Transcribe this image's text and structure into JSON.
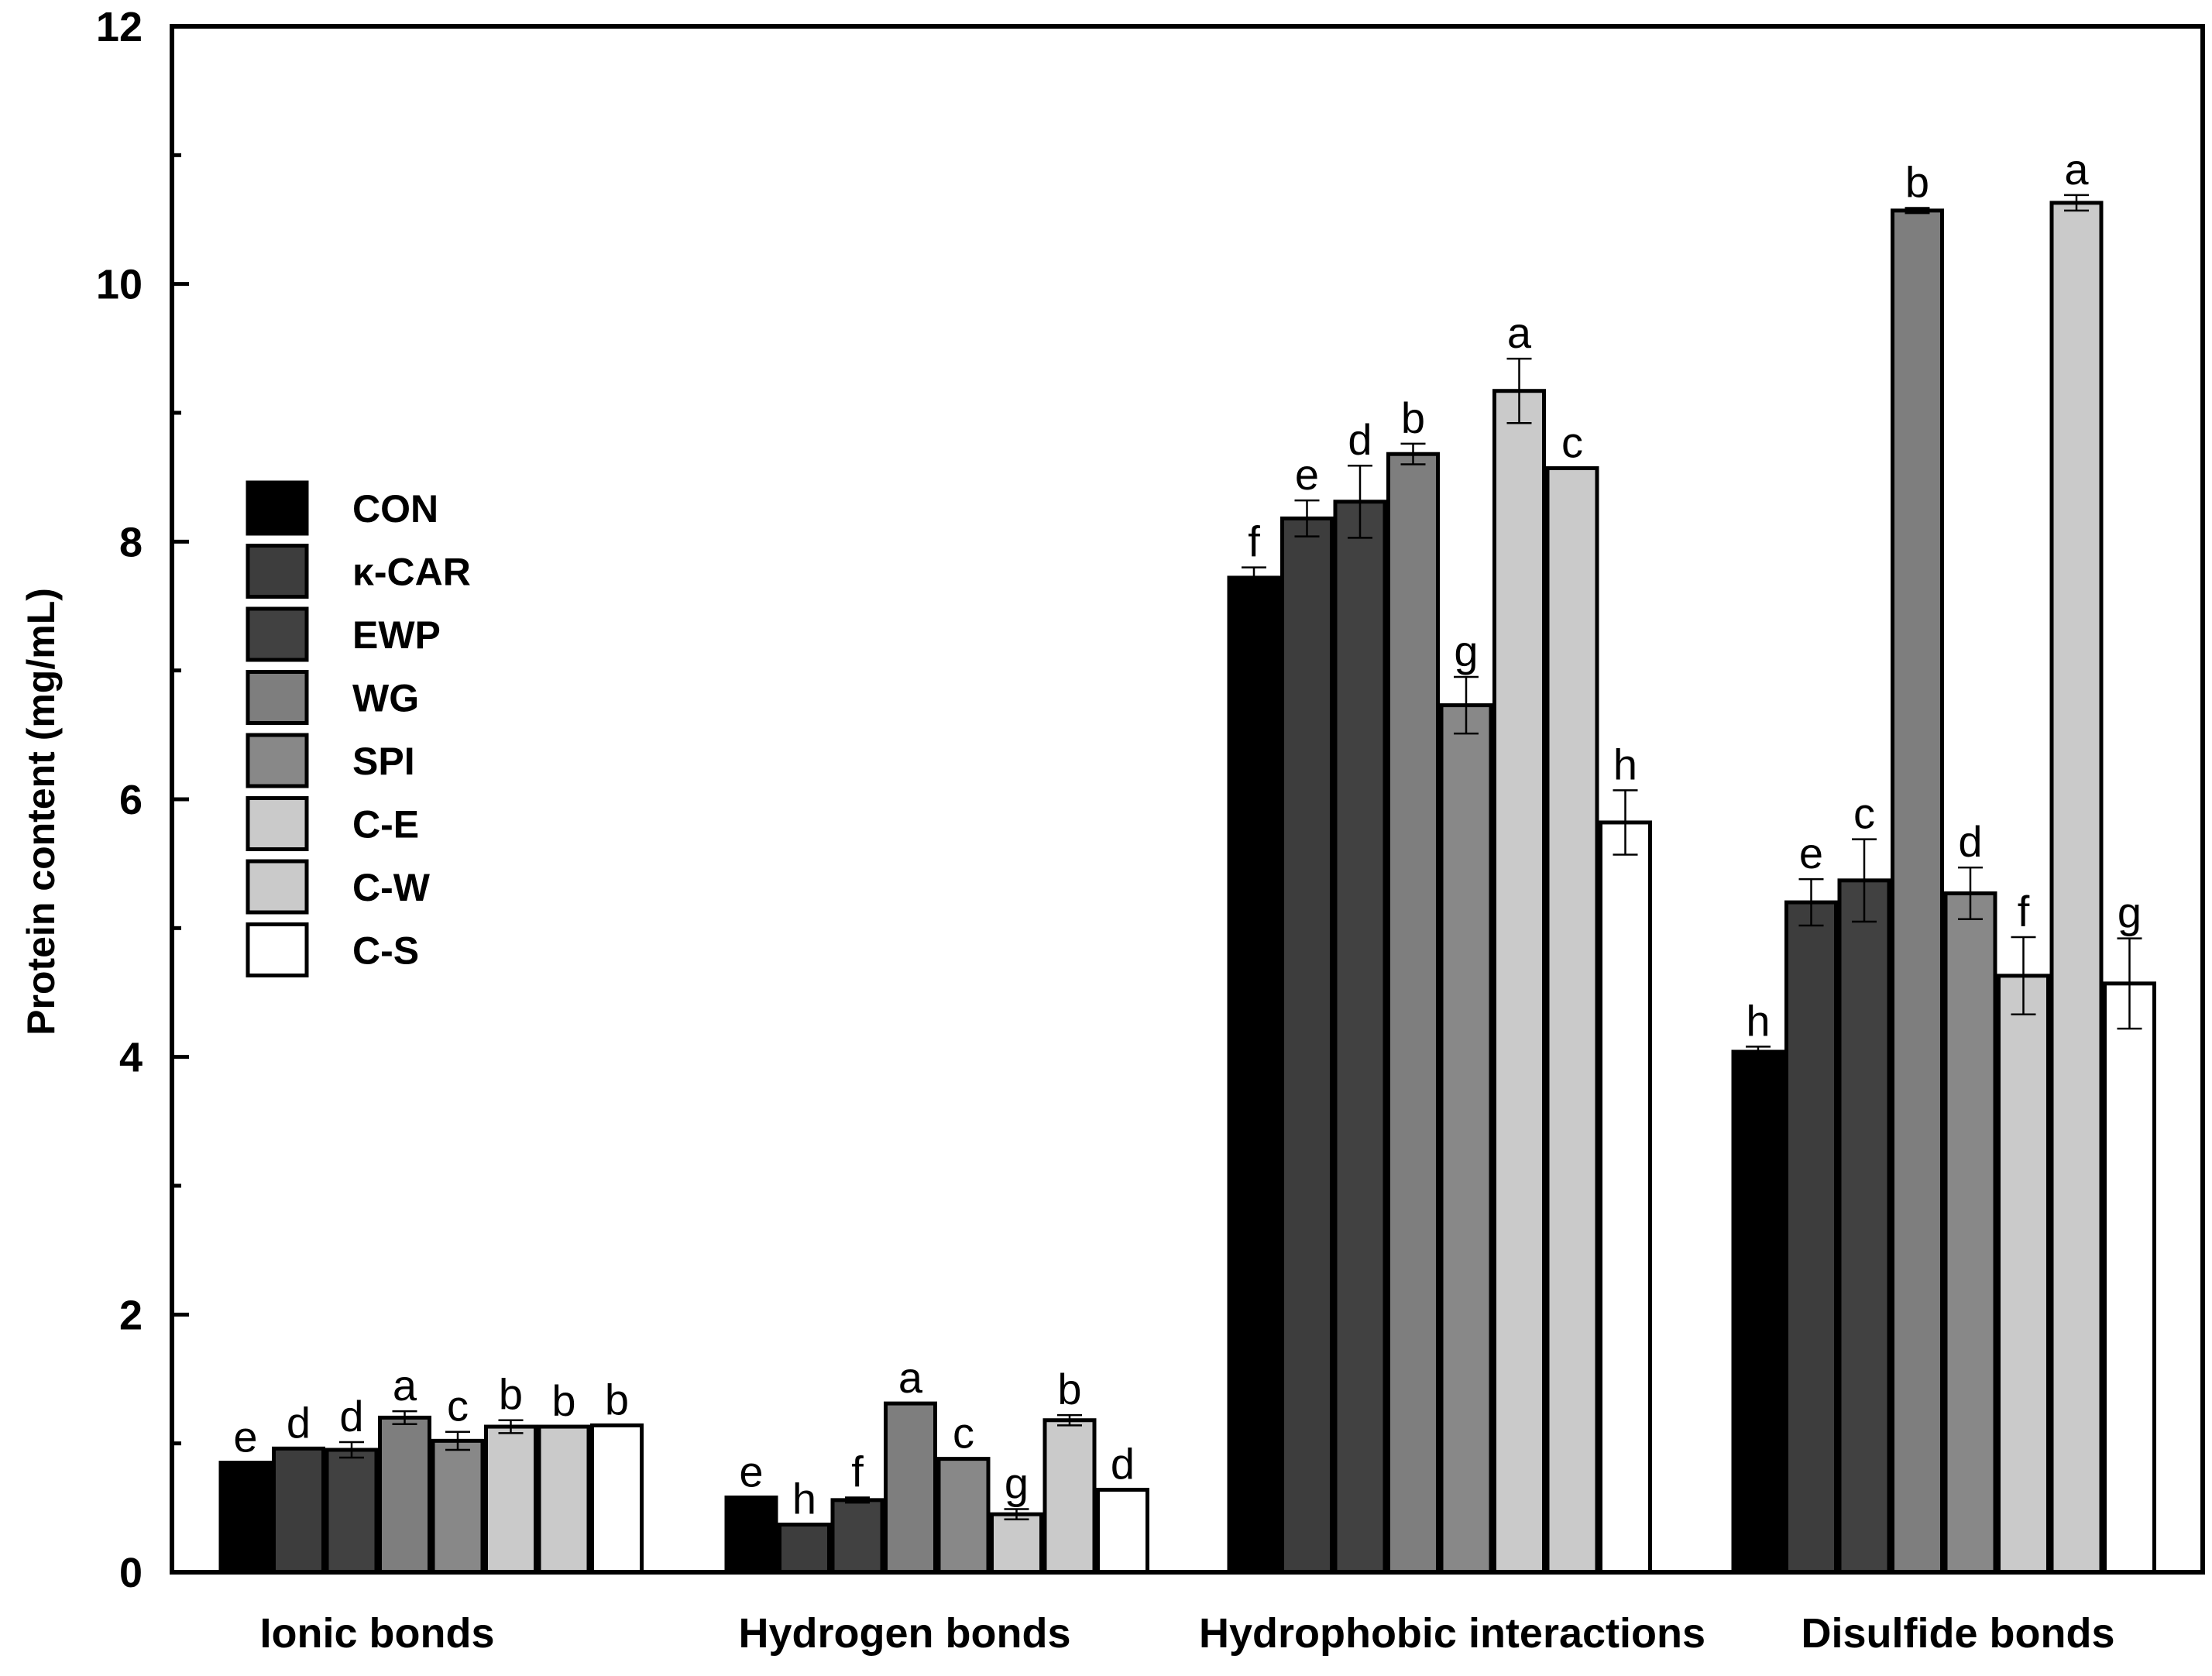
{
  "chart_data": {
    "type": "bar",
    "title": "",
    "xlabel": "",
    "ylabel": "Protein content (mg/mL)",
    "ylim": [
      0,
      12
    ],
    "yticks": [
      0,
      2,
      4,
      6,
      8,
      10,
      12
    ],
    "grid": false,
    "legend_position": "left",
    "categories": [
      "Ionic bonds",
      "Hydrogen bonds",
      "Hydrophobic interactions",
      "Disulfide bonds"
    ],
    "series": [
      {
        "name": "CON",
        "color": "#000000",
        "values": [
          0.85,
          0.58,
          7.72,
          4.04
        ],
        "errors": [
          0.0,
          0.0,
          0.08,
          0.04
        ],
        "letters": [
          "e",
          "e",
          "f",
          "h"
        ]
      },
      {
        "name": "κ-CAR",
        "color": "#3d3d3d",
        "values": [
          0.96,
          0.37,
          8.18,
          5.2
        ],
        "errors": [
          0.0,
          0.0,
          0.14,
          0.18
        ],
        "letters": [
          "d",
          "h",
          "e",
          "e"
        ]
      },
      {
        "name": "EWP",
        "color": "#414141",
        "values": [
          0.95,
          0.56,
          8.31,
          5.37
        ],
        "errors": [
          0.06,
          0.02,
          0.28,
          0.32
        ],
        "letters": [
          "d",
          "f",
          "d",
          "c"
        ]
      },
      {
        "name": "WG",
        "color": "#7e7e7e",
        "values": [
          1.2,
          1.31,
          8.68,
          10.57
        ],
        "errors": [
          0.05,
          0.0,
          0.08,
          0.02
        ],
        "letters": [
          "a",
          "a",
          "b",
          "b"
        ]
      },
      {
        "name": "SPI",
        "color": "#888888",
        "values": [
          1.02,
          0.88,
          6.73,
          5.27
        ],
        "errors": [
          0.07,
          0.0,
          0.22,
          0.2
        ],
        "letters": [
          "c",
          "c",
          "g",
          "d"
        ]
      },
      {
        "name": "C-E",
        "color": "#cacaca",
        "values": [
          1.13,
          0.45,
          9.17,
          4.63
        ],
        "errors": [
          0.05,
          0.04,
          0.25,
          0.3
        ],
        "letters": [
          "b",
          "g",
          "a",
          "f"
        ]
      },
      {
        "name": "C-W",
        "color": "#cacaca",
        "values": [
          1.13,
          1.18,
          8.57,
          10.63
        ],
        "errors": [
          0.0,
          0.04,
          0.0,
          0.06
        ],
        "letters": [
          "b",
          "b",
          "c",
          "a"
        ]
      },
      {
        "name": "C-S",
        "color": "#ffffff",
        "values": [
          1.14,
          0.64,
          5.82,
          4.57
        ],
        "errors": [
          0.0,
          0.0,
          0.25,
          0.35
        ],
        "letters": [
          "b",
          "d",
          "h",
          "g"
        ]
      }
    ]
  }
}
